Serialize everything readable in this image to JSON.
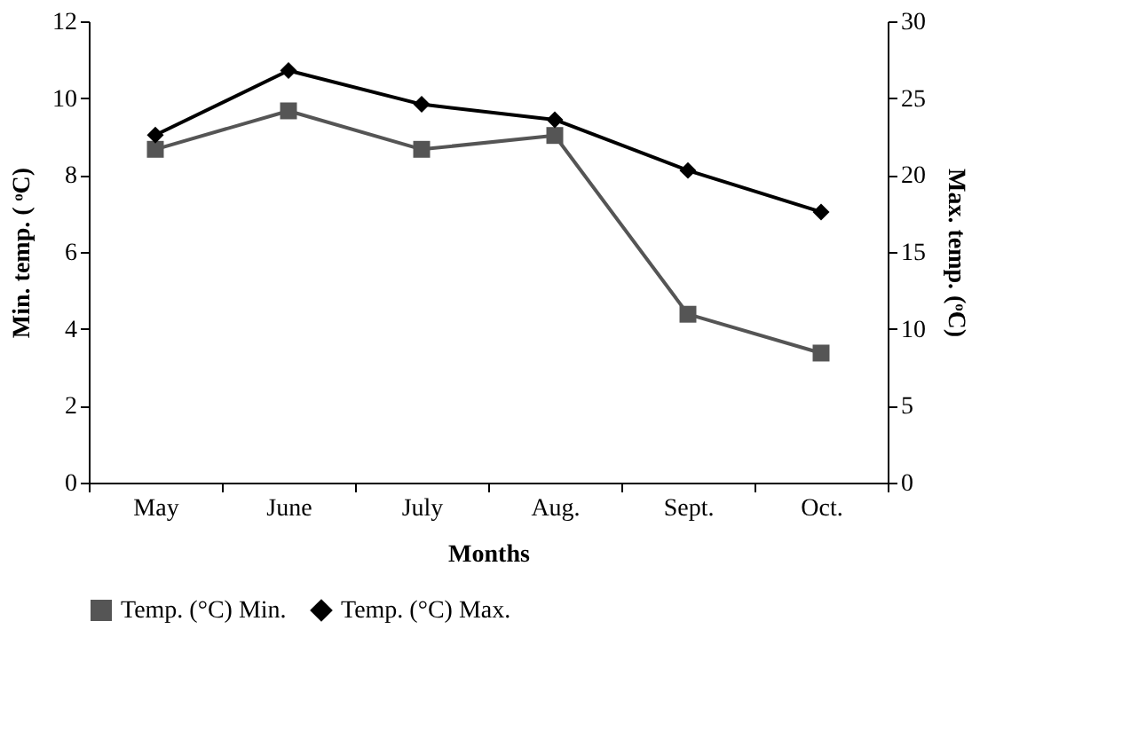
{
  "chart_data": {
    "type": "line",
    "xlabel": "Months",
    "ylabel": "Min. temp. ( ᵒC)",
    "y2label": "Max. temp. (ᵒC)",
    "categories": [
      "May",
      "June",
      "July",
      "Aug.",
      "Sept.",
      "Oct."
    ],
    "series": [
      {
        "name": "Temp. (°C) Min.",
        "color": "#555555",
        "marker": "square",
        "values": [
          8.67,
          9.67,
          8.67,
          9.03,
          4.38,
          3.37
        ]
      },
      {
        "name": "Temp. (°C) Max.",
        "color": "#000000",
        "marker": "diamond",
        "axis": "y2",
        "values": [
          22.6,
          26.8,
          24.6,
          23.6,
          20.3,
          17.6
        ]
      }
    ],
    "ylim": [
      0,
      12
    ],
    "yticks": [
      0,
      2,
      4,
      6,
      8,
      10,
      12
    ],
    "y2lim": [
      0,
      30
    ],
    "y2ticks": [
      0,
      5,
      10,
      15,
      20,
      25,
      30
    ],
    "grid": false,
    "legend": "bottom",
    "line_style": "solid"
  }
}
